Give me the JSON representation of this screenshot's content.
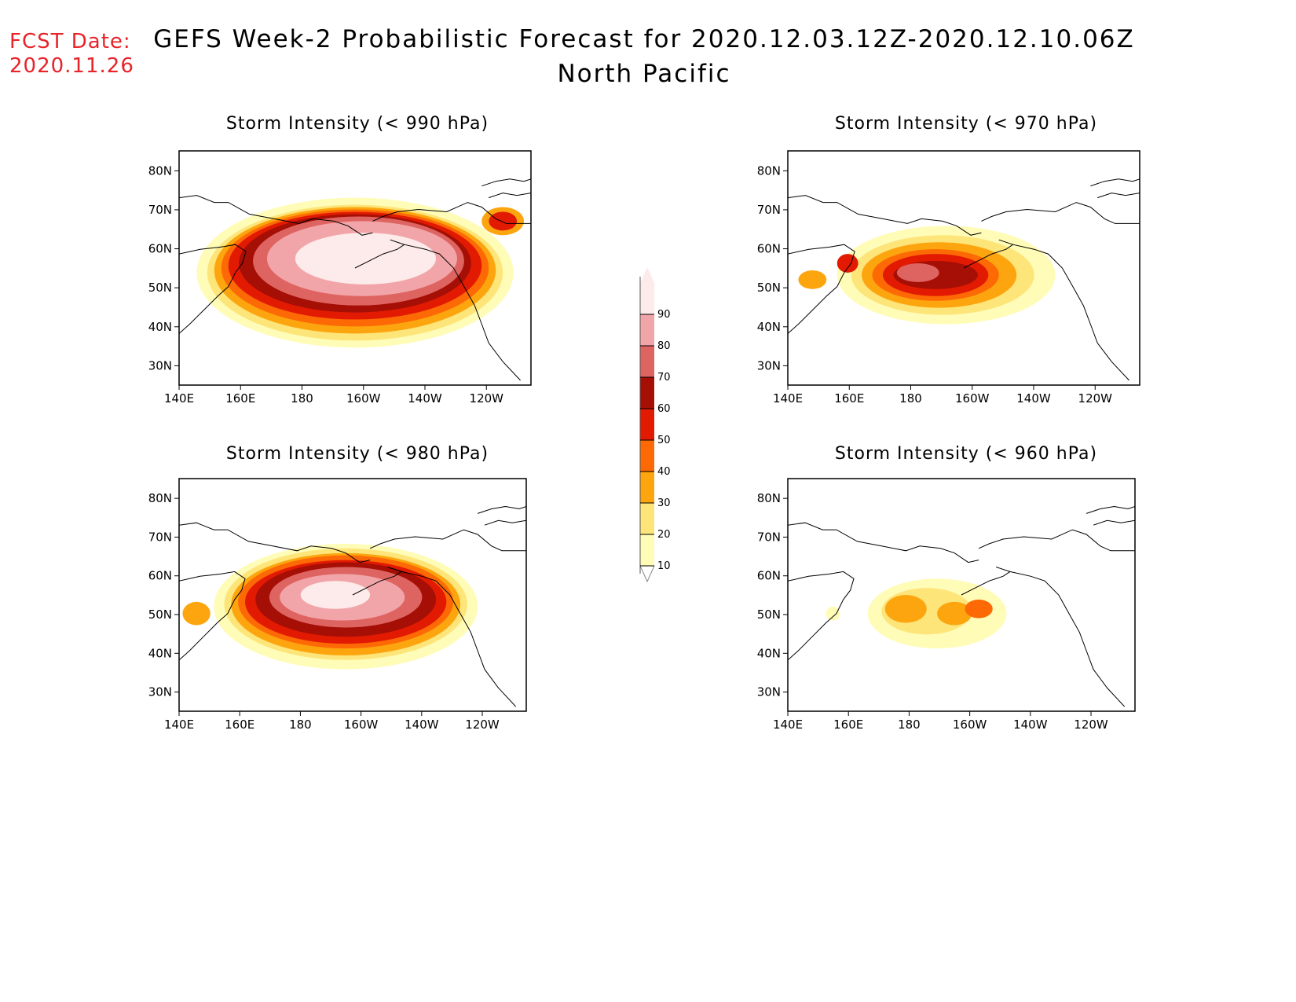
{
  "forecast_date": {
    "label": "FCST Date:",
    "value": "2020.11.26"
  },
  "title": "GEFS Week-2 Probabilistic Forecast for 2020.12.03.12Z-2020.12.10.06Z",
  "subtitle": "North Pacific",
  "panels": [
    {
      "id": "p990",
      "title": "Storm Intensity (< 990 hPa)"
    },
    {
      "id": "p970",
      "title": "Storm Intensity (< 970 hPa)"
    },
    {
      "id": "p980",
      "title": "Storm Intensity (< 980 hPa)"
    },
    {
      "id": "p960",
      "title": "Storm Intensity (< 960 hPa)"
    }
  ],
  "lon_ticks": [
    "140E",
    "160E",
    "180",
    "160W",
    "140W",
    "120W"
  ],
  "lat_ticks": [
    "80N",
    "70N",
    "60N",
    "50N",
    "40N",
    "30N"
  ],
  "colorbar": {
    "levels": [
      "10",
      "20",
      "30",
      "40",
      "50",
      "60",
      "70",
      "80",
      "90"
    ],
    "colors": [
      "#fffcb8",
      "#fde57a",
      "#fda50e",
      "#fd6a05",
      "#e31a02",
      "#a50f05",
      "#de6462",
      "#f2a5a8",
      "#fdeaea"
    ]
  }
}
